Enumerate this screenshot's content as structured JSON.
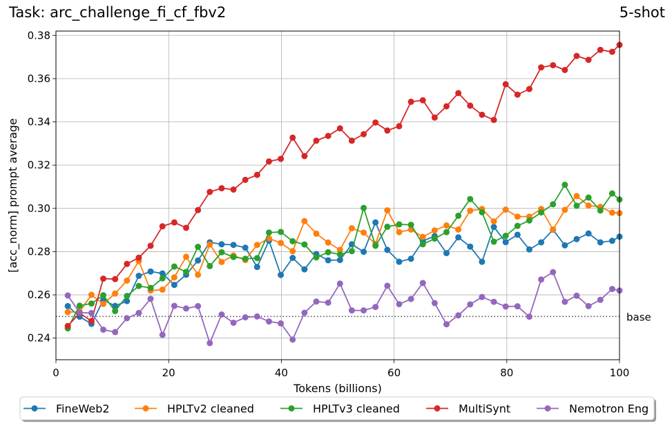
{
  "header": {
    "task_title": "Task: arc_challenge_fi_cf_fbv2",
    "shots": "5-shot"
  },
  "chart_data": {
    "type": "line",
    "title": "Task: arc_challenge_fi_cf_fbv2",
    "subtitle": "5-shot",
    "xlabel": "Tokens (billions)",
    "ylabel": "[acc_norm] prompt average",
    "xlim": [
      0,
      100
    ],
    "ylim": [
      0.23,
      0.382
    ],
    "xticks": [
      0,
      20,
      40,
      60,
      80,
      100
    ],
    "yticks": [
      0.24,
      0.26,
      0.28,
      0.3,
      0.32,
      0.34,
      0.36,
      0.38
    ],
    "grid": true,
    "legend_placement": "bottom-center",
    "baseline": {
      "label": "base",
      "value": 0.25,
      "style": "dotted",
      "color": "#444444"
    },
    "x": [
      2.1,
      4.2,
      6.3,
      8.4,
      10.5,
      12.6,
      14.7,
      16.8,
      18.9,
      21.0,
      23.1,
      25.2,
      27.3,
      29.4,
      31.5,
      33.6,
      35.7,
      37.8,
      39.9,
      42.0,
      44.1,
      46.2,
      48.3,
      50.4,
      52.5,
      54.6,
      56.7,
      58.8,
      60.9,
      63.0,
      65.1,
      67.2,
      69.3,
      71.4,
      73.5,
      75.6,
      77.7,
      79.8,
      81.9,
      84.0,
      86.1,
      88.2,
      90.3,
      92.4,
      94.5,
      96.6,
      98.7,
      100.0
    ],
    "series": [
      {
        "name": "FineWeb2",
        "color": "#1f77b4",
        "values": [
          0.2548,
          0.2499,
          0.2466,
          0.2576,
          0.2549,
          0.2571,
          0.2688,
          0.2708,
          0.2699,
          0.2646,
          0.2693,
          0.2759,
          0.2843,
          0.2834,
          0.2831,
          0.2818,
          0.2729,
          0.2851,
          0.2692,
          0.2771,
          0.2718,
          0.2789,
          0.276,
          0.2761,
          0.2834,
          0.2799,
          0.2935,
          0.2808,
          0.2753,
          0.2767,
          0.2849,
          0.2872,
          0.2793,
          0.2866,
          0.2823,
          0.2753,
          0.2914,
          0.2844,
          0.2878,
          0.281,
          0.2843,
          0.2901,
          0.2829,
          0.2858,
          0.2884,
          0.2843,
          0.285,
          0.2869
        ]
      },
      {
        "name": "HPLTv2 cleaned",
        "color": "#ff7f0e",
        "values": [
          0.252,
          0.2522,
          0.26,
          0.2558,
          0.2606,
          0.2666,
          0.2756,
          0.262,
          0.2624,
          0.2681,
          0.2776,
          0.2693,
          0.2833,
          0.2752,
          0.2782,
          0.2761,
          0.2831,
          0.2861,
          0.284,
          0.2802,
          0.2941,
          0.2883,
          0.2842,
          0.2808,
          0.2908,
          0.2888,
          0.2835,
          0.2991,
          0.289,
          0.2902,
          0.2868,
          0.2898,
          0.2921,
          0.2902,
          0.2989,
          0.2997,
          0.294,
          0.2994,
          0.2962,
          0.2962,
          0.2997,
          0.2902,
          0.2993,
          0.3057,
          0.3013,
          0.3007,
          0.298,
          0.2978
        ]
      },
      {
        "name": "HPLTv3 cleaned",
        "color": "#2ca02c",
        "values": [
          0.2445,
          0.255,
          0.256,
          0.2598,
          0.2525,
          0.2595,
          0.2641,
          0.2632,
          0.2676,
          0.2731,
          0.2706,
          0.2822,
          0.2733,
          0.2797,
          0.2775,
          0.2767,
          0.277,
          0.2888,
          0.2891,
          0.2848,
          0.2833,
          0.2773,
          0.2797,
          0.2787,
          0.2802,
          0.3002,
          0.2827,
          0.2915,
          0.2926,
          0.2924,
          0.2834,
          0.286,
          0.289,
          0.2966,
          0.3043,
          0.2982,
          0.2846,
          0.2873,
          0.2919,
          0.2944,
          0.2981,
          0.3019,
          0.3109,
          0.3012,
          0.305,
          0.299,
          0.3069,
          0.3041
        ]
      },
      {
        "name": "MultiSynt",
        "color": "#d62728",
        "values": [
          0.2456,
          0.2515,
          0.2479,
          0.2675,
          0.2673,
          0.2743,
          0.2772,
          0.2827,
          0.2917,
          0.2935,
          0.291,
          0.2992,
          0.3076,
          0.3093,
          0.3087,
          0.3132,
          0.3155,
          0.3217,
          0.3229,
          0.3327,
          0.3242,
          0.3313,
          0.3335,
          0.337,
          0.3313,
          0.3343,
          0.3397,
          0.336,
          0.338,
          0.3493,
          0.35,
          0.342,
          0.3472,
          0.3533,
          0.3475,
          0.3433,
          0.3409,
          0.3574,
          0.3526,
          0.3552,
          0.3652,
          0.3662,
          0.364,
          0.3705,
          0.3687,
          0.3733,
          0.3724,
          0.3756
        ]
      },
      {
        "name": "Nemotron Eng",
        "color": "#9467bd",
        "values": [
          0.2597,
          0.2518,
          0.2516,
          0.2439,
          0.2428,
          0.2492,
          0.2516,
          0.2582,
          0.2415,
          0.2549,
          0.2537,
          0.2548,
          0.2377,
          0.2509,
          0.2471,
          0.2496,
          0.25,
          0.2477,
          0.2468,
          0.2393,
          0.2517,
          0.2569,
          0.2564,
          0.2652,
          0.2528,
          0.2528,
          0.2544,
          0.2642,
          0.2557,
          0.2581,
          0.2655,
          0.2562,
          0.2464,
          0.2505,
          0.2556,
          0.259,
          0.2568,
          0.2546,
          0.2547,
          0.2499,
          0.2671,
          0.2705,
          0.2568,
          0.2596,
          0.2548,
          0.2577,
          0.2627,
          0.262
        ]
      }
    ]
  }
}
